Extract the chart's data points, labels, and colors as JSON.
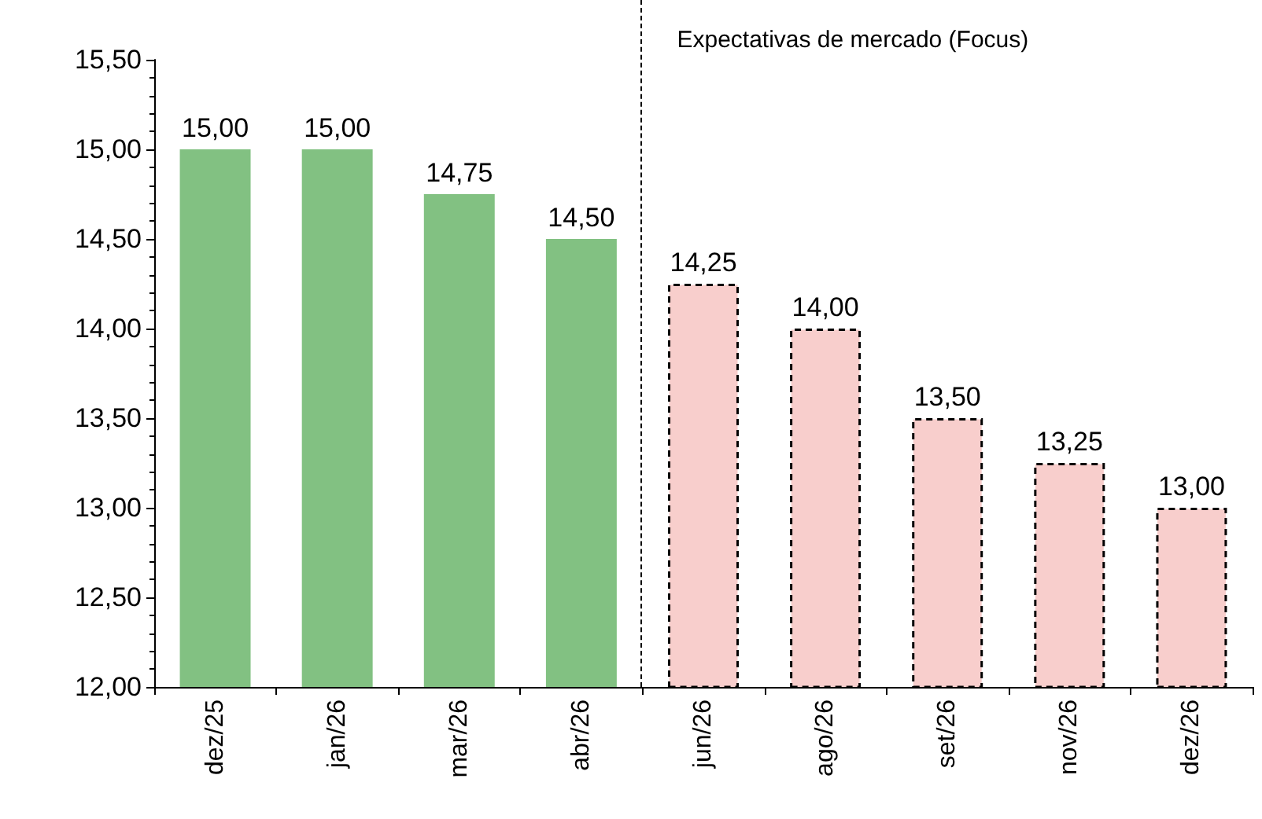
{
  "chart_data": {
    "type": "bar",
    "categories": [
      "dez/25",
      "jan/26",
      "mar/26",
      "abr/26",
      "jun/26",
      "ago/26",
      "set/26",
      "nov/26",
      "dez/26"
    ],
    "series": [
      {
        "color": "#82c182",
        "values": [
          15.0,
          15.0,
          14.75,
          14.5,
          null,
          null,
          null,
          null,
          null
        ],
        "value_labels": [
          "15,00",
          "15,00",
          "14,75",
          "14,50",
          null,
          null,
          null,
          null,
          null
        ]
      },
      {
        "color": "#f8cecc",
        "line_style": "dashed",
        "values": [
          null,
          null,
          null,
          null,
          14.25,
          14.0,
          13.5,
          13.25,
          13.0
        ],
        "value_labels": [
          null,
          null,
          null,
          null,
          "14,25",
          "14,00",
          "13,50",
          "13,25",
          "13,00"
        ]
      }
    ],
    "ylim": [
      12,
      15.5
    ],
    "yticks": [
      {
        "value": 12,
        "label": "12,00"
      },
      {
        "value": 12.5,
        "label": "12,50"
      },
      {
        "value": 13,
        "label": "13,00"
      },
      {
        "value": 13.5,
        "label": "13,50"
      },
      {
        "value": 14,
        "label": "14,00"
      },
      {
        "value": 14.5,
        "label": "14,50"
      },
      {
        "value": 15,
        "label": "15,00"
      },
      {
        "value": 15.5,
        "label": "15,50"
      }
    ],
    "grid": false,
    "annotations": [
      "Expectativas de mercado (Focus)"
    ]
  }
}
